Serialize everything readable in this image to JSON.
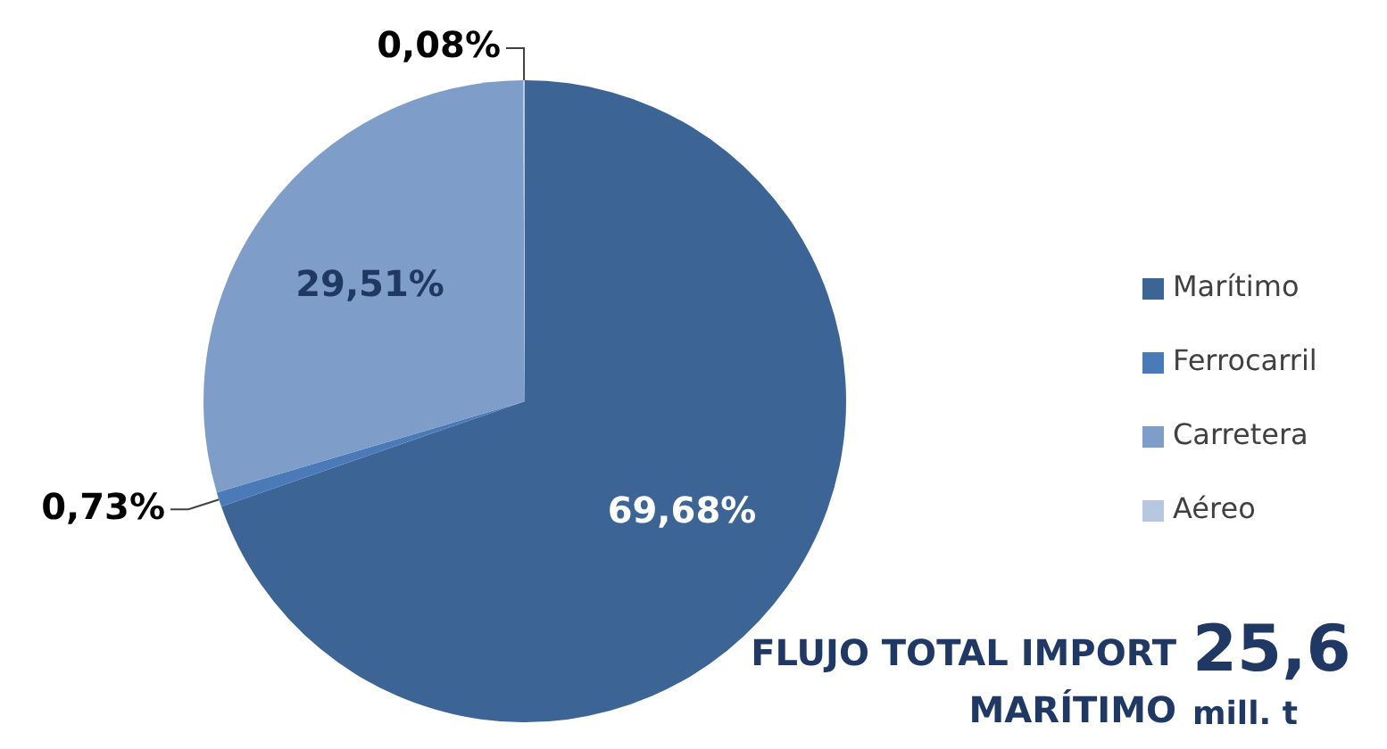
{
  "chart_data": {
    "type": "pie",
    "title": "FLUJO TOTAL IMPORT MARÍTIMO",
    "categories": [
      "Marítimo",
      "Ferrocarril",
      "Carretera",
      "Aéreo"
    ],
    "values": [
      69.68,
      0.73,
      29.51,
      0.08
    ],
    "colors": [
      "#3c6494",
      "#4a7ab8",
      "#7f9dc9",
      "#b8c7e0"
    ],
    "value_labels": [
      "69,68%",
      "0,73%",
      "29,51%",
      "0,08%"
    ],
    "legend": "right",
    "annotations": [
      "25,6",
      "mill. t"
    ]
  }
}
